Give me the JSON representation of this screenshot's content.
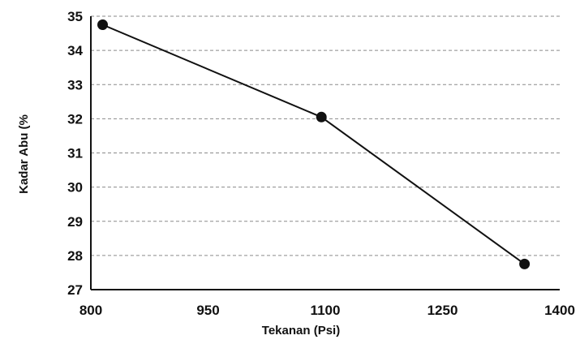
{
  "chart_data": {
    "type": "line",
    "xlabel": "Tekanan (Psi)",
    "ylabel": "Kadar Abu (%",
    "xlim": [
      800,
      1400
    ],
    "ylim": [
      27,
      35
    ],
    "xticks": [
      "800",
      "950",
      "1100",
      "1250",
      "1400"
    ],
    "yticks": [
      "35",
      "34",
      "33",
      "32",
      "31",
      "30",
      "29",
      "28",
      "27"
    ],
    "grid": "horizontal-dashed",
    "series": [
      {
        "x": [
          815,
          1095,
          1355
        ],
        "y": [
          34.75,
          32.05,
          27.75
        ]
      }
    ],
    "colors": {
      "line": "#111111",
      "marker": "#111111",
      "grid": "#8a8a8a"
    }
  }
}
